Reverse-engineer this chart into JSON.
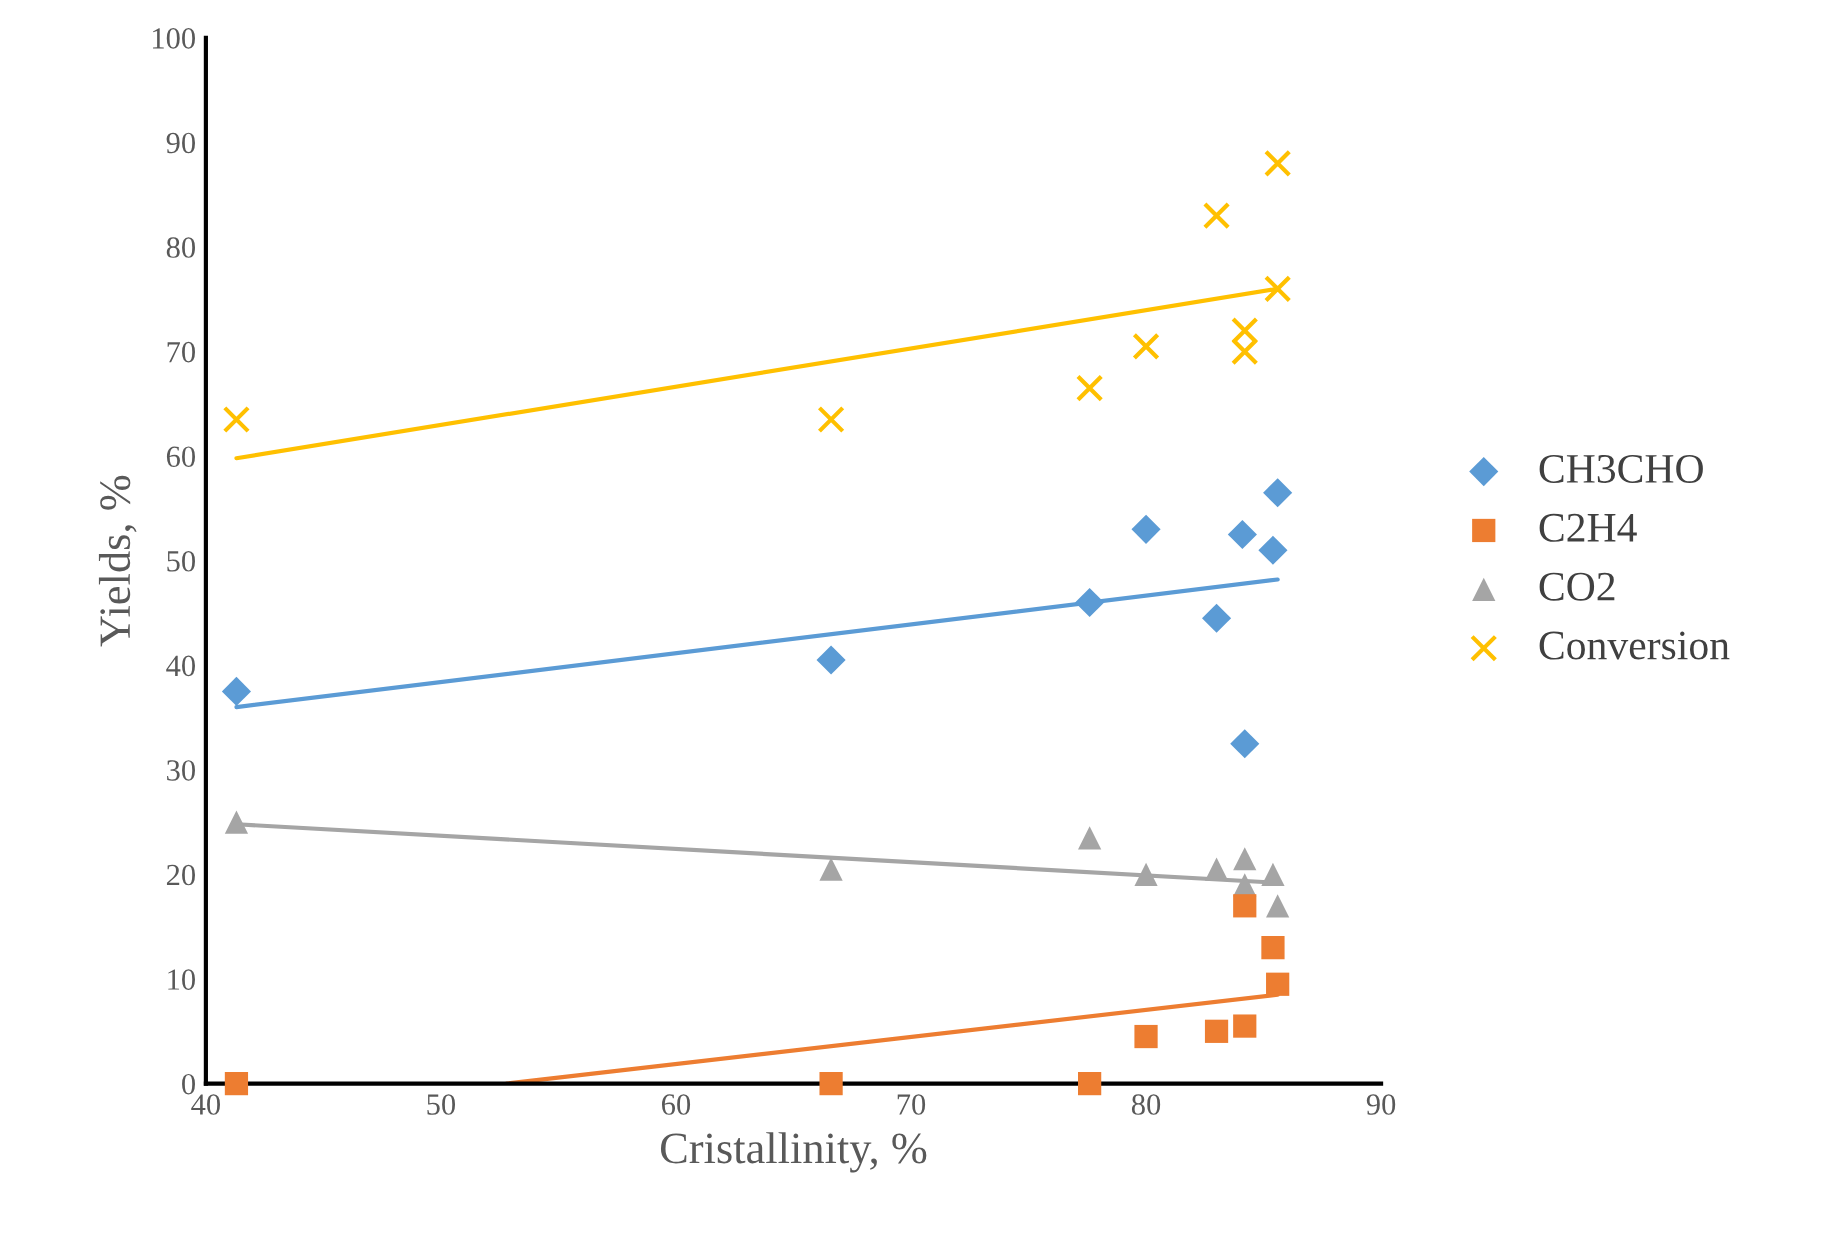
{
  "chart_data": {
    "type": "scatter",
    "xlabel": "Cristallinity, %",
    "ylabel": "Yields, %",
    "xlim": [
      40,
      90
    ],
    "xticks": [
      40,
      50,
      60,
      70,
      80,
      90
    ],
    "ylim": [
      0,
      100
    ],
    "yticks": [
      0,
      10,
      20,
      30,
      40,
      50,
      60,
      70,
      80,
      90,
      100
    ],
    "grid": false,
    "legend": "right",
    "series": [
      {
        "name": "CH3CHO",
        "color": "#5b9bd5",
        "marker": "diamond",
        "x": [
          41.3,
          66.6,
          77.6,
          80,
          83,
          84.1,
          84.2,
          85.4,
          85.6
        ],
        "values": [
          37.5,
          40.5,
          46,
          53,
          44.5,
          52.5,
          32.5,
          51,
          56.5
        ]
      },
      {
        "name": "C2H4",
        "color": "#ed7d31",
        "marker": "square",
        "x": [
          41.3,
          66.6,
          77.6,
          80,
          83,
          84.2,
          84.2,
          85.4,
          85.6
        ],
        "values": [
          0,
          0,
          0,
          4.5,
          5,
          5.5,
          17,
          13,
          9.5
        ]
      },
      {
        "name": "CO2",
        "color": "#a5a5a5",
        "marker": "triangle",
        "x": [
          41.3,
          66.6,
          77.6,
          80,
          83,
          84.2,
          84.2,
          85.4,
          85.6
        ],
        "values": [
          25,
          20.5,
          23.5,
          20,
          20.5,
          21.5,
          19,
          20,
          17
        ]
      },
      {
        "name": "Conversion",
        "color": "#ffc000",
        "marker": "cross",
        "x": [
          41.3,
          66.6,
          77.6,
          80,
          83,
          84.2,
          84.2,
          85.6,
          85.6
        ],
        "values": [
          63.5,
          63.5,
          66.5,
          70.5,
          83,
          72,
          70,
          88,
          76
        ]
      },
      {
        "type": "line",
        "color": "#5b9bd5",
        "x": [
          41.3,
          85.6
        ],
        "values": [
          36,
          48.2
        ]
      },
      {
        "type": "line",
        "color": "#ed7d31",
        "x": [
          52.8,
          85.6
        ],
        "values": [
          0,
          8.5
        ]
      },
      {
        "type": "line",
        "color": "#a5a5a5",
        "x": [
          41.3,
          85.6
        ],
        "values": [
          24.8,
          19.2
        ]
      },
      {
        "type": "line",
        "color": "#ffc000",
        "x": [
          41.3,
          85.6
        ],
        "values": [
          59.8,
          76
        ]
      }
    ]
  }
}
